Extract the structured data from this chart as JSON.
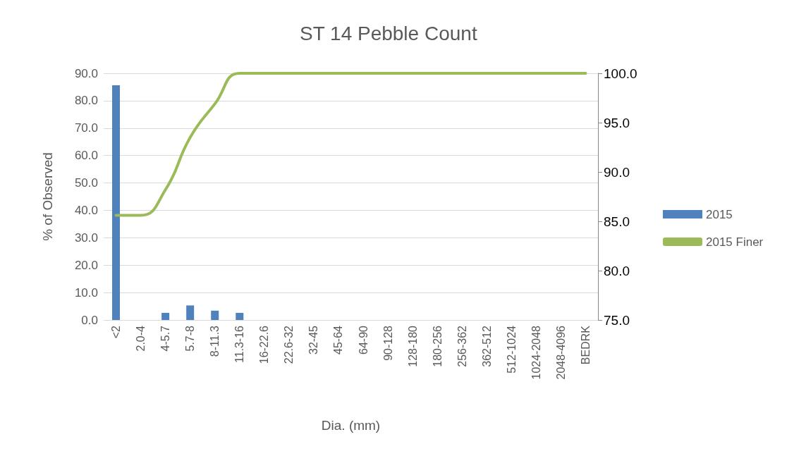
{
  "chart_data": {
    "type": "bar",
    "title": "ST 14 Pebble Count",
    "xlabel": "Dia. (mm)",
    "ylabel": "% of Observed",
    "categories": [
      "<2",
      "2.0-4",
      "4-5.7",
      "5.7-8",
      "8-11.3",
      "11.3-16",
      "16-22.6",
      "22.6-32",
      "32-45",
      "45-64",
      "64-90",
      "90-128",
      "128-180",
      "180-256",
      "256-362",
      "362-512",
      "512-1024",
      "1024-2048",
      "2048-4096",
      "BEDRK"
    ],
    "series": [
      {
        "name": "2015",
        "color": "#4f81bd",
        "values": [
          85.6,
          0,
          2.6,
          5.3,
          3.4,
          2.6,
          0,
          0,
          0,
          0,
          0,
          0,
          0,
          0,
          0,
          0,
          0,
          0,
          0,
          0
        ]
      },
      {
        "name": "2015 Finer",
        "type": "line",
        "axis": "y2",
        "color": "#9bbb59",
        "values": [
          85.6,
          85.6,
          88.2,
          93.5,
          96.9,
          100,
          100,
          100,
          100,
          100,
          100,
          100,
          100,
          100,
          100,
          100,
          100,
          100,
          100,
          100
        ]
      }
    ],
    "ylim": [
      0,
      90
    ],
    "yticks": [
      {
        "value": 0,
        "label": "0.0"
      },
      {
        "value": 10,
        "label": "10.0"
      },
      {
        "value": 20,
        "label": "20.0"
      },
      {
        "value": 30,
        "label": "30.0"
      },
      {
        "value": 40,
        "label": "40.0"
      },
      {
        "value": 50,
        "label": "50.0"
      },
      {
        "value": 60,
        "label": "60.0"
      },
      {
        "value": 70,
        "label": "70.0"
      },
      {
        "value": 80,
        "label": "80.0"
      },
      {
        "value": 90,
        "label": "90.0"
      }
    ],
    "y2lim": [
      75,
      100
    ],
    "y2ticks": [
      {
        "value": 75,
        "label": "75.0"
      },
      {
        "value": 80,
        "label": "80.0"
      },
      {
        "value": 85,
        "label": "85.0"
      },
      {
        "value": 90,
        "label": "90.0"
      },
      {
        "value": 95,
        "label": "95.0"
      },
      {
        "value": 100,
        "label": "100.0"
      }
    ],
    "grid": "y",
    "legend": "right",
    "marker": "none"
  }
}
